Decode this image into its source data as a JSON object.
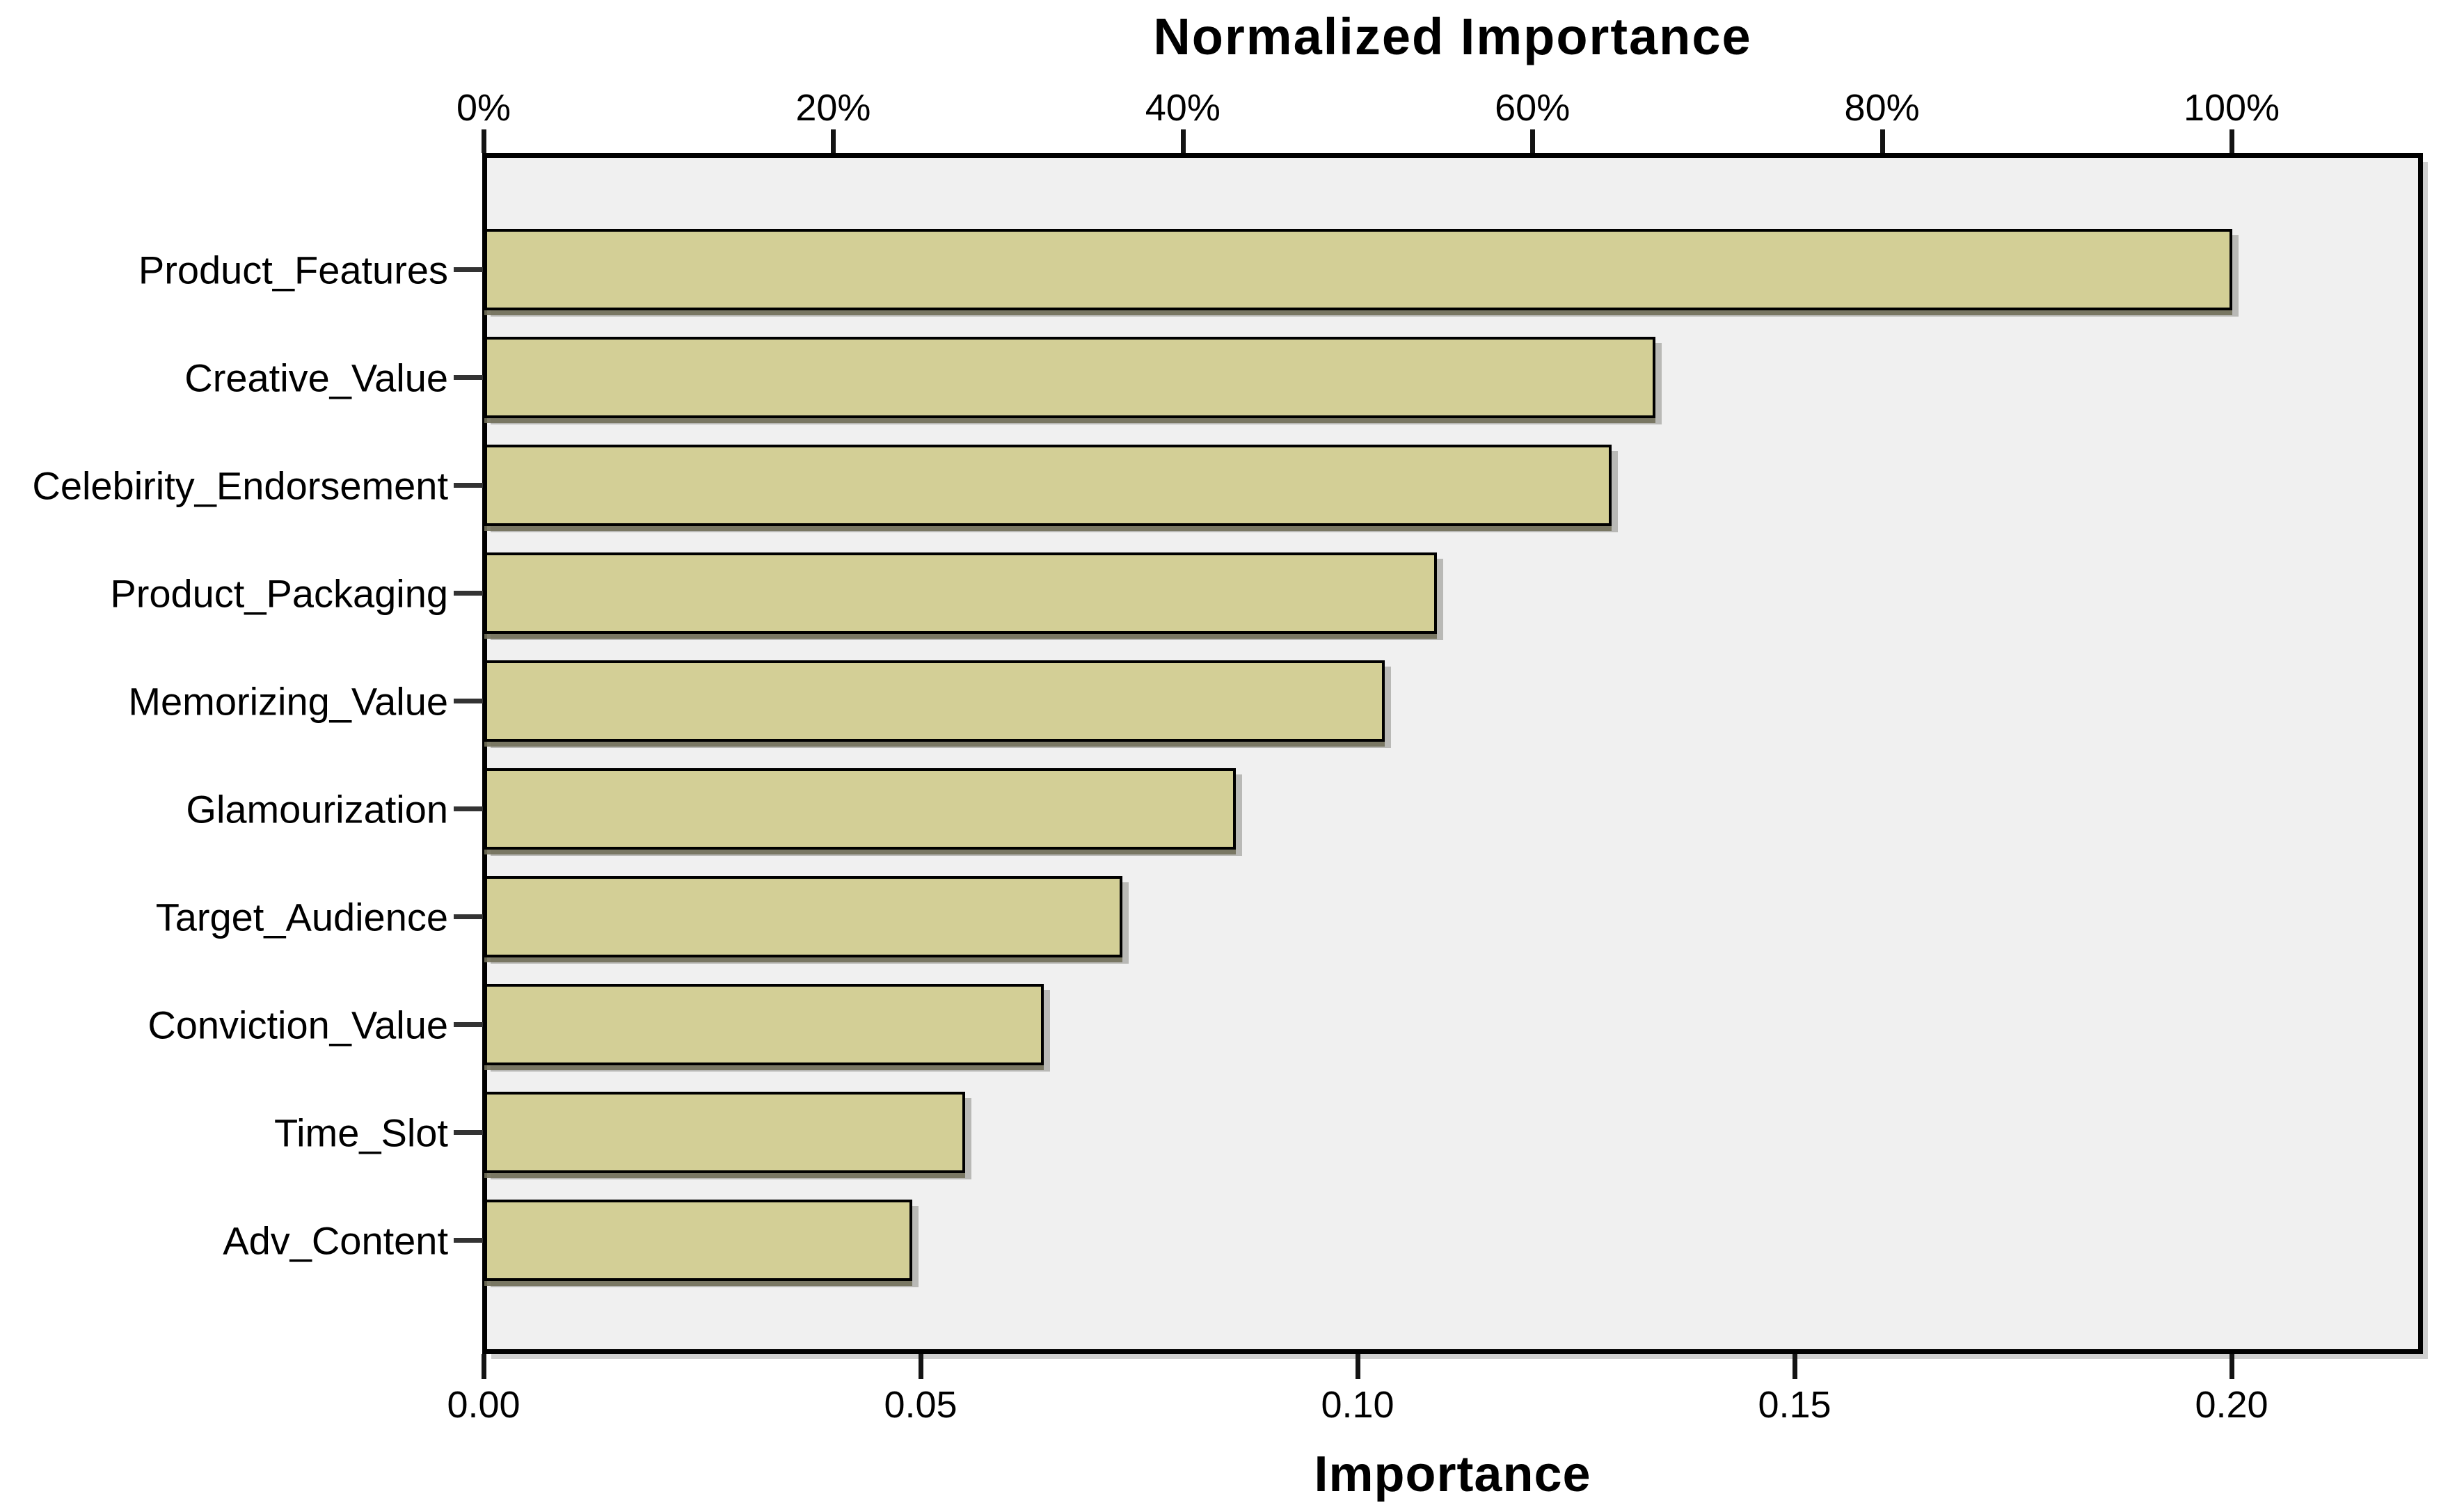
{
  "chart_data": {
    "type": "bar",
    "orientation": "horizontal",
    "title": "Normalized Importance",
    "xlabel": "Importance",
    "grid": false,
    "legend": false,
    "top_axis": {
      "tick_labels": [
        "0%",
        "20%",
        "40%",
        "60%",
        "80%",
        "100%"
      ],
      "ticks_pct": [
        0,
        20,
        40,
        60,
        80,
        100
      ],
      "normalized_max_importance": 0.2
    },
    "bottom_axis": {
      "tick_labels": [
        "0.00",
        "0.05",
        "0.10",
        "0.15",
        "0.20"
      ],
      "ticks": [
        0.0,
        0.05,
        0.1,
        0.15,
        0.2
      ],
      "xlim": [
        0,
        0.222
      ]
    },
    "categories": [
      "Product_Features",
      "Creative_Value",
      "Celebirity_Endorsement",
      "Product_Packaging",
      "Memorizing_Value",
      "Glamourization",
      "Target_Audience",
      "Conviction_Value",
      "Time_Slot",
      "Adv_Content"
    ],
    "values": [
      0.2,
      0.134,
      0.129,
      0.109,
      0.103,
      0.086,
      0.073,
      0.064,
      0.055,
      0.049
    ],
    "normalized_pct": [
      100,
      67,
      64.5,
      54.5,
      51.5,
      43,
      36.5,
      32,
      27.5,
      24.5
    ]
  },
  "colors": {
    "bar_fill": "#d3cf96",
    "bar_border": "#000000",
    "bar_shadow": "#8c8c86",
    "plot_bg": "#f0f0f0",
    "plot_border": "#000000",
    "page_bg": "#ffffff",
    "text": "#000000"
  }
}
